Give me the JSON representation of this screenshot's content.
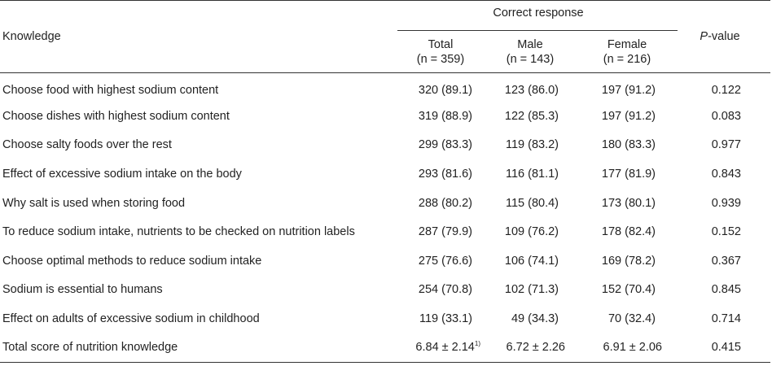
{
  "header": {
    "knowledge": "Knowledge",
    "group": "Correct response",
    "p_value_italic": "P",
    "p_value_rest": "-value",
    "columns": [
      {
        "name": "Total",
        "n": "(n = 359)"
      },
      {
        "name": "Male",
        "n": "(n = 143)"
      },
      {
        "name": "Female",
        "n": "(n = 216)"
      }
    ]
  },
  "rows": [
    {
      "knowledge": "Choose food with highest sodium content",
      "total": "320 (89.1)",
      "male": "123 (86.0)",
      "female": "197 (91.2)",
      "p": "0.122"
    },
    {
      "knowledge": "Choose dishes with highest sodium content",
      "total": "319 (88.9)",
      "male": "122 (85.3)",
      "female": "197 (91.2)",
      "p": "0.083"
    },
    {
      "knowledge": "Choose salty foods over the rest",
      "total": "299 (83.3)",
      "male": "119 (83.2)",
      "female": "180 (83.3)",
      "p": "0.977"
    },
    {
      "knowledge": "Effect of excessive sodium intake on the body",
      "total": "293 (81.6)",
      "male": "116 (81.1)",
      "female": "177 (81.9)",
      "p": "0.843"
    },
    {
      "knowledge": "Why salt is used when storing food",
      "total": "288 (80.2)",
      "male": "115 (80.4)",
      "female": "173 (80.1)",
      "p": "0.939"
    },
    {
      "knowledge": "To reduce sodium intake, nutrients to be checked on nutrition labels",
      "total": "287 (79.9)",
      "male": "109 (76.2)",
      "female": "178 (82.4)",
      "p": "0.152"
    },
    {
      "knowledge": "Choose optimal methods to reduce sodium intake",
      "total": "275 (76.6)",
      "male": "106 (74.1)",
      "female": "169 (78.2)",
      "p": "0.367"
    },
    {
      "knowledge": "Sodium is essential to humans",
      "total": "254 (70.8)",
      "male": "102 (71.3)",
      "female": "152 (70.4)",
      "p": "0.845"
    },
    {
      "knowledge": "Effect on adults of excessive sodium in childhood",
      "total": "119 (33.1)",
      "male": "49 (34.3)",
      "female": "70 (32.4)",
      "p": "0.714"
    }
  ],
  "total_row": {
    "knowledge": "Total score of nutrition knowledge",
    "total": "6.84 ± 2.14",
    "total_footnote": "1)",
    "male": "6.72 ± 2.26",
    "female": "6.91 ± 2.06",
    "p": "0.415"
  }
}
